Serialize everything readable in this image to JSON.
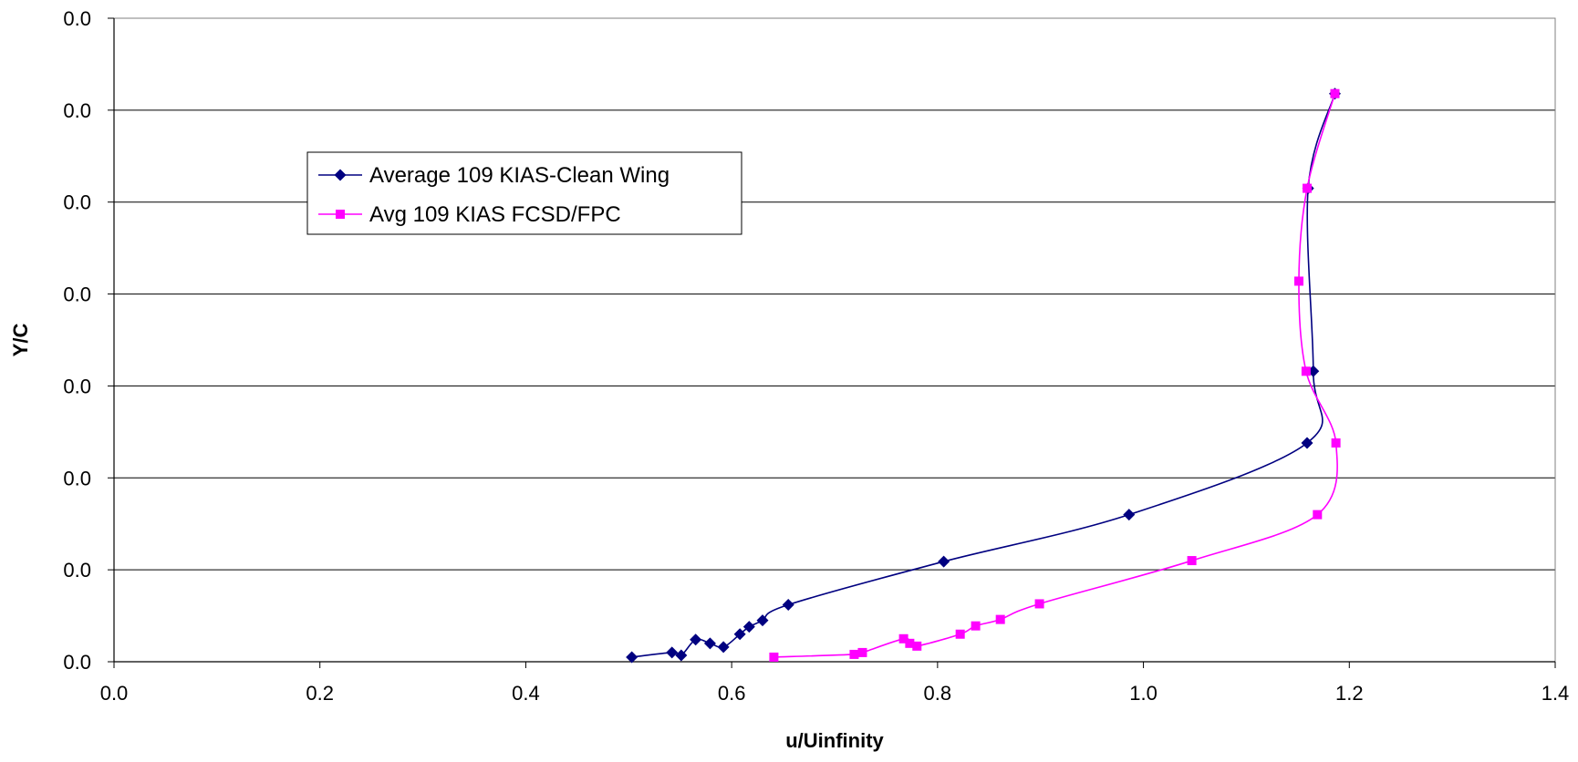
{
  "chart_data": {
    "type": "line",
    "title": "",
    "xlabel": "u/Uinfinity",
    "ylabel": "Y/C",
    "xlim": [
      0.0,
      1.4
    ],
    "ylim": [
      0.0,
      0.07
    ],
    "x_ticks": [
      "0.0",
      "0.2",
      "0.4",
      "0.6",
      "0.8",
      "1.0",
      "1.2",
      "1.4"
    ],
    "y_ticks": [
      "0.0",
      "0.0",
      "0.0",
      "0.0",
      "0.0",
      "0.0",
      "0.0",
      "0.0"
    ],
    "y_grid": true,
    "x_grid": false,
    "legend_position": "upper-left",
    "series": [
      {
        "name": "Average 109 KIAS-Clean Wing",
        "color": "#000080",
        "marker": "diamond",
        "x": [
          0.503,
          0.542,
          0.551,
          0.565,
          0.579,
          0.592,
          0.608,
          0.617,
          0.63,
          0.655,
          0.806,
          0.986,
          1.159,
          1.165,
          1.16,
          1.186
        ],
        "y": [
          0.0005,
          0.001,
          0.0007,
          0.0024,
          0.002,
          0.0016,
          0.003,
          0.0038,
          0.0045,
          0.0062,
          0.0109,
          0.016,
          0.0238,
          0.0316,
          0.0515,
          0.0618
        ]
      },
      {
        "name": "Avg 109 KIAS FCSD/FPC",
        "color": "#ff00ff",
        "marker": "square",
        "x": [
          0.641,
          0.719,
          0.727,
          0.767,
          0.773,
          0.78,
          0.822,
          0.837,
          0.861,
          0.899,
          1.047,
          1.169,
          1.187,
          1.158,
          1.151,
          1.159,
          1.186
        ],
        "y": [
          0.0005,
          0.0008,
          0.001,
          0.0025,
          0.002,
          0.0017,
          0.003,
          0.0039,
          0.0046,
          0.0063,
          0.011,
          0.016,
          0.0238,
          0.0316,
          0.0414,
          0.0515,
          0.0618
        ]
      }
    ]
  }
}
